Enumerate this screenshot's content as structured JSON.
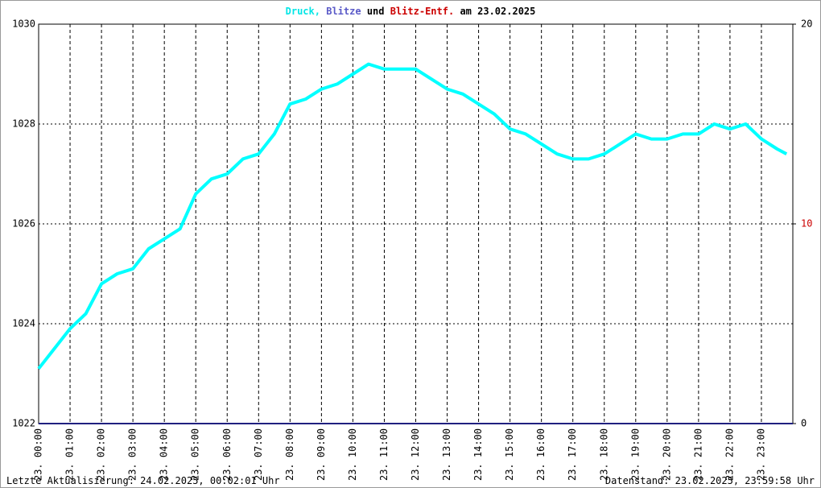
{
  "chart_data": {
    "type": "line",
    "title_parts": [
      {
        "text": "Druck,",
        "color": "#00e6e6"
      },
      {
        "text": "Blitze",
        "color": "#5a5ac8"
      },
      {
        "text": "und",
        "color": "#000000"
      },
      {
        "text": "Blitz-Entf.",
        "color": "#cc0000"
      },
      {
        "text": "am 23.02.2025",
        "color": "#000000"
      }
    ],
    "footer_left": "Letzte Aktualisierung: 24.02.2025, 00:02:01 Uhr",
    "footer_right": "Datenstand: 23.02.2025, 23:59:58 Uhr",
    "xlim": [
      0,
      24
    ],
    "xticks": [
      {
        "value": 0,
        "label": "23. 00:00"
      },
      {
        "value": 1,
        "label": "23. 01:00"
      },
      {
        "value": 2,
        "label": "23. 02:00"
      },
      {
        "value": 3,
        "label": "23. 03:00"
      },
      {
        "value": 4,
        "label": "23. 04:00"
      },
      {
        "value": 5,
        "label": "23. 05:00"
      },
      {
        "value": 6,
        "label": "23. 06:00"
      },
      {
        "value": 7,
        "label": "23. 07:00"
      },
      {
        "value": 8,
        "label": "23. 08:00"
      },
      {
        "value": 9,
        "label": "23. 09:00"
      },
      {
        "value": 10,
        "label": "23. 10:00"
      },
      {
        "value": 11,
        "label": "23. 11:00"
      },
      {
        "value": 12,
        "label": "23. 12:00"
      },
      {
        "value": 13,
        "label": "23. 13:00"
      },
      {
        "value": 14,
        "label": "23. 14:00"
      },
      {
        "value": 15,
        "label": "23. 15:00"
      },
      {
        "value": 16,
        "label": "23. 16:00"
      },
      {
        "value": 17,
        "label": "23. 17:00"
      },
      {
        "value": 18,
        "label": "23. 18:00"
      },
      {
        "value": 19,
        "label": "23. 19:00"
      },
      {
        "value": 20,
        "label": "23. 20:00"
      },
      {
        "value": 21,
        "label": "23. 21:00"
      },
      {
        "value": 22,
        "label": "23. 22:00"
      },
      {
        "value": 23,
        "label": "23. 23:00"
      }
    ],
    "ylim": [
      1022,
      1030
    ],
    "yticks": [
      1022,
      1024,
      1026,
      1028,
      1030
    ],
    "y2lim": [
      0,
      20
    ],
    "y2ticks": [
      0,
      10,
      20
    ],
    "y2tick_colors": [
      "#000000",
      "#cc0000",
      "#000000"
    ],
    "grid": true,
    "series": [
      {
        "name": "Druck",
        "color": "#00ffff",
        "x": [
          0,
          0.5,
          1,
          1.5,
          2,
          2.5,
          3,
          3.5,
          4,
          4.5,
          5,
          5.5,
          6,
          6.5,
          7,
          7.5,
          8,
          8.5,
          9,
          9.5,
          10,
          10.5,
          11,
          11.5,
          12,
          12.5,
          13,
          13.5,
          14,
          14.5,
          15,
          15.5,
          16,
          16.5,
          17,
          17.5,
          18,
          18.5,
          19,
          19.5,
          20,
          20.5,
          21,
          21.5,
          22,
          22.5,
          23,
          23.5,
          23.8
        ],
        "values": [
          1023.1,
          1023.5,
          1023.9,
          1024.2,
          1024.8,
          1025.0,
          1025.1,
          1025.5,
          1025.7,
          1025.9,
          1026.6,
          1026.9,
          1027.0,
          1027.3,
          1027.4,
          1027.8,
          1028.4,
          1028.5,
          1028.7,
          1028.8,
          1029.0,
          1029.2,
          1029.1,
          1029.1,
          1029.1,
          1028.9,
          1028.7,
          1028.6,
          1028.4,
          1028.2,
          1027.9,
          1027.8,
          1027.6,
          1027.4,
          1027.3,
          1027.3,
          1027.4,
          1027.6,
          1027.8,
          1027.7,
          1027.7,
          1027.8,
          1027.8,
          1028.0,
          1027.9,
          1028.0,
          1027.7,
          1027.5,
          1027.4
        ]
      },
      {
        "name": "Blitze",
        "color": "#202080",
        "axis": "y2",
        "x": [
          0,
          24
        ],
        "values": [
          0,
          0
        ]
      }
    ]
  }
}
